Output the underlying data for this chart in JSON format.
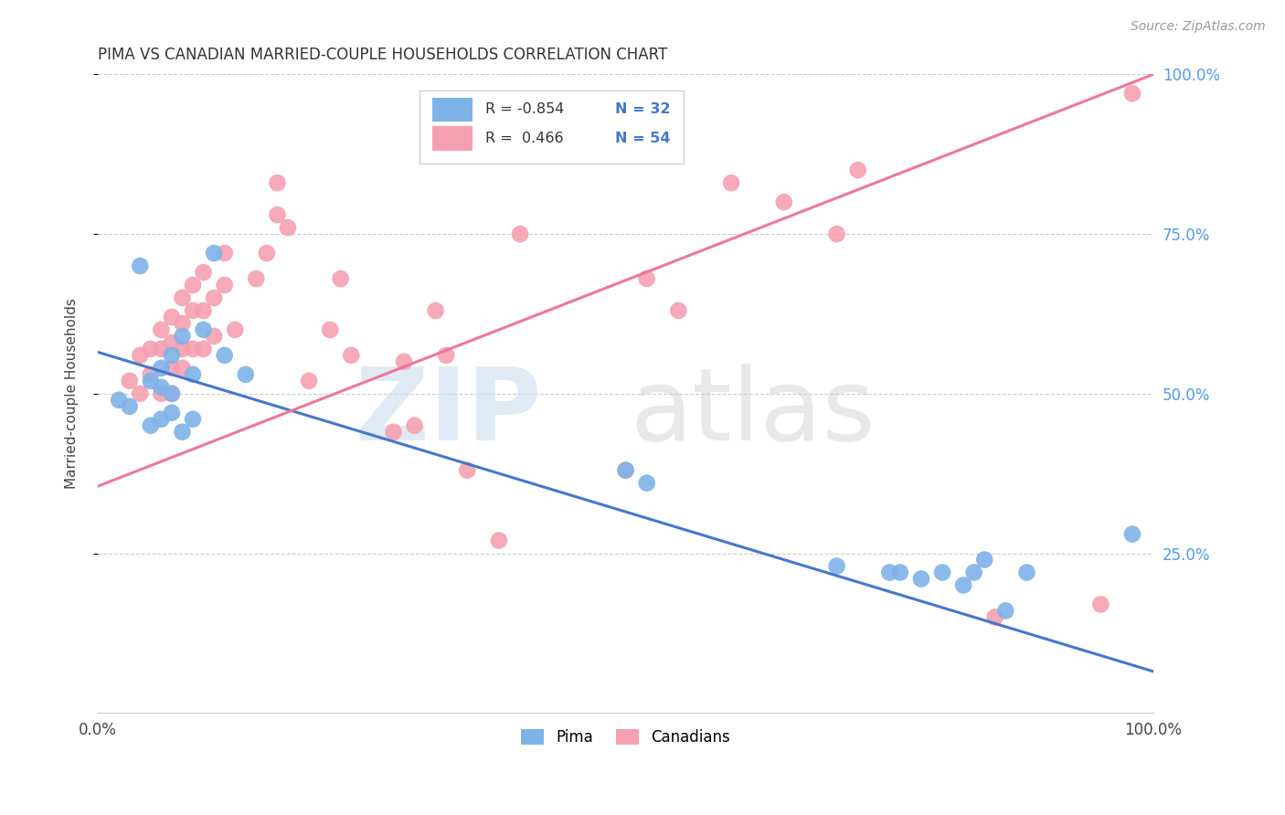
{
  "title": "PIMA VS CANADIAN MARRIED-COUPLE HOUSEHOLDS CORRELATION CHART",
  "source": "Source: ZipAtlas.com",
  "ylabel": "Married-couple Households",
  "legend_blue_R": "-0.854",
  "legend_blue_N": "32",
  "legend_pink_R": "0.466",
  "legend_pink_N": "54",
  "blue_color": "#7EB3E8",
  "pink_color": "#F5A0B0",
  "blue_line_color": "#4477CC",
  "pink_line_color": "#EE7799",
  "xlim": [
    0.0,
    1.0
  ],
  "ylim": [
    0.0,
    1.0
  ],
  "pima_x": [
    0.02,
    0.03,
    0.04,
    0.05,
    0.05,
    0.06,
    0.06,
    0.06,
    0.07,
    0.07,
    0.07,
    0.08,
    0.08,
    0.09,
    0.09,
    0.1,
    0.11,
    0.12,
    0.14,
    0.5,
    0.52,
    0.7,
    0.75,
    0.76,
    0.78,
    0.8,
    0.82,
    0.83,
    0.84,
    0.86,
    0.88,
    0.98
  ],
  "pima_y": [
    0.49,
    0.48,
    0.7,
    0.52,
    0.45,
    0.51,
    0.54,
    0.46,
    0.56,
    0.5,
    0.47,
    0.59,
    0.44,
    0.53,
    0.46,
    0.6,
    0.72,
    0.56,
    0.53,
    0.38,
    0.36,
    0.23,
    0.22,
    0.22,
    0.21,
    0.22,
    0.2,
    0.22,
    0.24,
    0.16,
    0.22,
    0.28
  ],
  "canadian_x": [
    0.03,
    0.04,
    0.04,
    0.05,
    0.05,
    0.06,
    0.06,
    0.06,
    0.07,
    0.07,
    0.07,
    0.07,
    0.08,
    0.08,
    0.08,
    0.08,
    0.09,
    0.09,
    0.09,
    0.1,
    0.1,
    0.1,
    0.11,
    0.11,
    0.12,
    0.12,
    0.13,
    0.15,
    0.16,
    0.17,
    0.17,
    0.18,
    0.2,
    0.22,
    0.23,
    0.24,
    0.28,
    0.29,
    0.3,
    0.32,
    0.33,
    0.35,
    0.38,
    0.4,
    0.5,
    0.52,
    0.55,
    0.6,
    0.65,
    0.7,
    0.72,
    0.85,
    0.95,
    0.98
  ],
  "canadian_y": [
    0.52,
    0.56,
    0.5,
    0.57,
    0.53,
    0.6,
    0.57,
    0.5,
    0.62,
    0.58,
    0.54,
    0.5,
    0.65,
    0.61,
    0.57,
    0.54,
    0.67,
    0.63,
    0.57,
    0.69,
    0.63,
    0.57,
    0.65,
    0.59,
    0.72,
    0.67,
    0.6,
    0.68,
    0.72,
    0.78,
    0.83,
    0.76,
    0.52,
    0.6,
    0.68,
    0.56,
    0.44,
    0.55,
    0.45,
    0.63,
    0.56,
    0.38,
    0.27,
    0.75,
    0.38,
    0.68,
    0.63,
    0.83,
    0.8,
    0.75,
    0.85,
    0.15,
    0.17,
    0.97
  ],
  "blue_line_x0": 0.0,
  "blue_line_y0": 0.565,
  "blue_line_x1": 1.0,
  "blue_line_y1": 0.065,
  "pink_line_x0": 0.0,
  "pink_line_y0": 0.355,
  "pink_line_x1": 1.0,
  "pink_line_y1": 1.0
}
